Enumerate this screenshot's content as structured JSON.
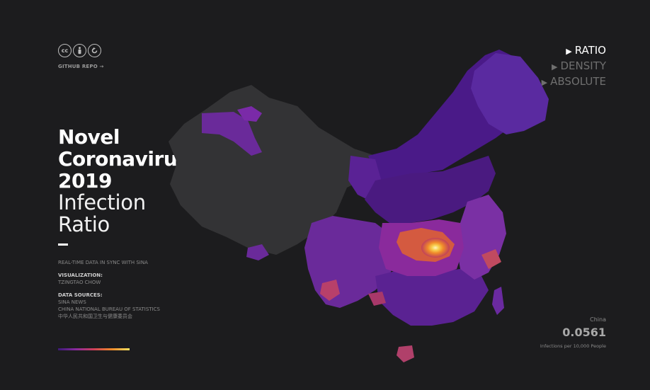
{
  "license": {
    "icons": [
      "cc-icon",
      "by-icon",
      "share-alike-icon"
    ],
    "cc_text": "cc"
  },
  "repo_link": "GITHUB REPO →",
  "title": {
    "line1": "Novel",
    "line2": "Coronavirus",
    "line3": "2019",
    "line4": "Infection",
    "line5": "Ratio"
  },
  "meta": {
    "sync": "REAL-TIME DATA IN SYNC WITH SINA",
    "viz_header": "VISUALIZATION:",
    "viz_author": "TZINGTAO CHOW",
    "sources_header": "DATA SOURCES:",
    "sources": [
      "SINA NEWS",
      "CHINA NATIONAL BUREAU OF STATISTICS",
      "中华人民共和国卫生与健康委员会"
    ]
  },
  "modes": [
    {
      "label": "RATIO",
      "active": true
    },
    {
      "label": "DENSITY",
      "active": false
    },
    {
      "label": "ABSOLUTE",
      "active": false
    }
  ],
  "stat": {
    "region": "China",
    "value": "0.0561",
    "unit": "Infections per 10,000 People"
  },
  "colors": {
    "background": "#1c1c1e",
    "no_data": "#333335",
    "scale": [
      "#3c1a78",
      "#8a2aa0",
      "#d0405a",
      "#f08a2a",
      "#f7e060"
    ]
  }
}
